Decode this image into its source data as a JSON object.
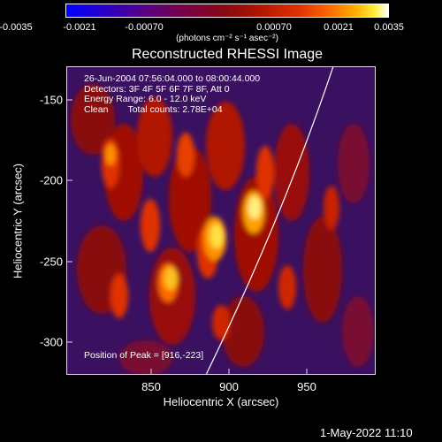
{
  "colorbar": {
    "ticks": [
      "-0.0035",
      "-0.0021",
      "-0.00070",
      "0.00070",
      "0.0021",
      "0.0035"
    ],
    "unit_label": "(photons cm⁻² s⁻¹ asec⁻²)"
  },
  "title": "Reconstructed RHESSI Image",
  "info": {
    "time_range": "26-Jun-2004 07:56:04.000 to 08:00:44.000",
    "detectors": "Detectors: 3F 4F 5F 6F 7F 8F, Att 0",
    "energy_range": "Energy Range: 6.0 - 12.0 keV",
    "algorithm": "Clean",
    "total_counts": "Total counts: 2.78E+04"
  },
  "peak_text": "Position of Peak = [916,-223]",
  "x_axis": {
    "label": "Heliocentric X (arcsec)",
    "ticks": [
      "850",
      "900",
      "950"
    ]
  },
  "y_axis": {
    "label": "Heliocentric Y (arcsec)",
    "ticks": [
      "-150",
      "-200",
      "-250",
      "-300"
    ]
  },
  "timestamp": "1-May-2022 11:10",
  "image": {
    "colormap": [
      "#0000ff",
      "#5a0080",
      "#8a0a10",
      "#e03000",
      "#ffb000",
      "#ffffff"
    ],
    "peak_x": 916,
    "peak_y": -223,
    "limb_line_color": "#ffffff"
  }
}
